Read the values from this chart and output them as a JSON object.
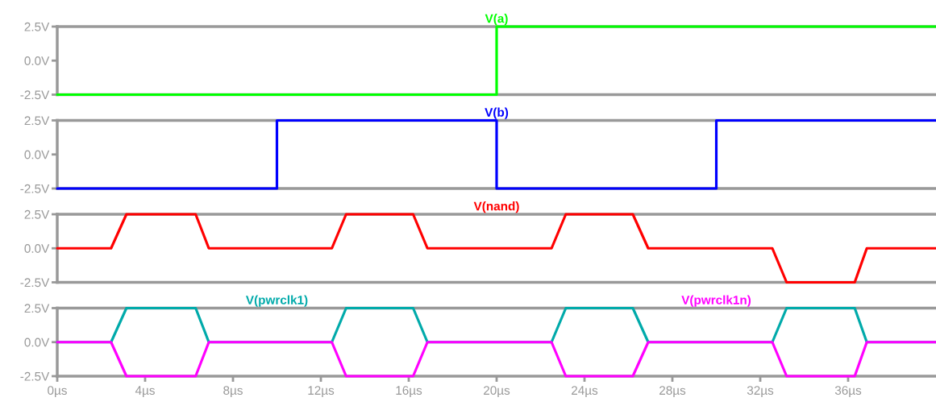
{
  "chart_data": [
    {
      "type": "line",
      "tick_labels": "y",
      "xlim": [
        0,
        40
      ],
      "ylim": [
        -2.5,
        2.5
      ],
      "yticks": [
        {
          "value": 2.5,
          "label": "2.5V"
        },
        {
          "value": 0,
          "label": "0.0V"
        },
        {
          "value": -2.5,
          "label": "-2.5V"
        }
      ],
      "series": [
        {
          "name": "V(a)",
          "color": "#00ff00",
          "x": [
            0,
            20,
            20,
            40
          ],
          "values": [
            -2.5,
            -2.5,
            2.5,
            2.5
          ]
        }
      ]
    },
    {
      "type": "line",
      "tick_labels": "y",
      "xlim": [
        0,
        40
      ],
      "ylim": [
        -2.5,
        2.5
      ],
      "yticks": [
        {
          "value": 2.5,
          "label": "2.5V"
        },
        {
          "value": 0,
          "label": "0.0V"
        },
        {
          "value": -2.5,
          "label": "-2.5V"
        }
      ],
      "series": [
        {
          "name": "V(b)",
          "color": "#0000ff",
          "x": [
            0,
            10,
            10,
            20,
            20,
            30,
            30,
            40
          ],
          "values": [
            -2.5,
            -2.5,
            2.5,
            2.5,
            -2.5,
            -2.5,
            2.5,
            2.5
          ]
        }
      ]
    },
    {
      "type": "line",
      "tick_labels": "y",
      "xlim": [
        0,
        40
      ],
      "ylim": [
        -2.5,
        2.5
      ],
      "yticks": [
        {
          "value": 2.5,
          "label": "2.5V"
        },
        {
          "value": 0,
          "label": "0.0V"
        },
        {
          "value": -2.5,
          "label": "-2.5V"
        }
      ],
      "series": [
        {
          "name": "V(nand)",
          "color": "#ff0000",
          "x": [
            0,
            2.45,
            3.15,
            6.3,
            6.9,
            12.5,
            13.15,
            16.2,
            16.85,
            22.5,
            23.15,
            26.2,
            26.9,
            32.55,
            33.2,
            36.3,
            36.85,
            40
          ],
          "values": [
            0,
            0,
            2.5,
            2.5,
            0,
            0,
            2.5,
            2.5,
            0,
            0,
            2.5,
            2.5,
            0,
            0,
            -2.5,
            -2.5,
            0,
            0
          ]
        }
      ]
    },
    {
      "type": "line",
      "xlim": [
        0,
        40
      ],
      "ylim": [
        -2.5,
        2.5
      ],
      "yticks": [
        {
          "value": 2.5,
          "label": "2.5V"
        },
        {
          "value": 0,
          "label": "0.0V"
        },
        {
          "value": -2.5,
          "label": "-2.5V"
        }
      ],
      "xticks": [
        {
          "value": 0,
          "label": "0µs"
        },
        {
          "value": 4,
          "label": "4µs"
        },
        {
          "value": 8,
          "label": "8µs"
        },
        {
          "value": 12,
          "label": "12µs"
        },
        {
          "value": 16,
          "label": "16µs"
        },
        {
          "value": 20,
          "label": "20µs"
        },
        {
          "value": 24,
          "label": "24µs"
        },
        {
          "value": 28,
          "label": "28µs"
        },
        {
          "value": 32,
          "label": "32µs"
        },
        {
          "value": 36,
          "label": "36µs"
        }
      ],
      "series": [
        {
          "name": "V(pwrclk1)",
          "color": "#00aaaa",
          "x": [
            0,
            2.45,
            3.15,
            6.3,
            6.9,
            12.5,
            13.15,
            16.2,
            16.85,
            22.5,
            23.15,
            26.2,
            26.9,
            32.55,
            33.2,
            36.3,
            36.85,
            40
          ],
          "values": [
            0,
            0,
            2.5,
            2.5,
            0,
            0,
            2.5,
            2.5,
            0,
            0,
            2.5,
            2.5,
            0,
            0,
            2.5,
            2.5,
            0,
            0
          ]
        },
        {
          "name": "V(pwrclk1n)",
          "color": "#ff00ff",
          "x": [
            0,
            2.45,
            3.15,
            6.3,
            6.9,
            12.5,
            13.15,
            16.2,
            16.85,
            22.5,
            23.15,
            26.2,
            26.9,
            32.55,
            33.2,
            36.3,
            36.85,
            40
          ],
          "values": [
            0,
            0,
            -2.5,
            -2.5,
            0,
            0,
            -2.5,
            -2.5,
            0,
            0,
            -2.5,
            -2.5,
            0,
            0,
            -2.5,
            -2.5,
            0,
            0
          ]
        }
      ]
    }
  ]
}
